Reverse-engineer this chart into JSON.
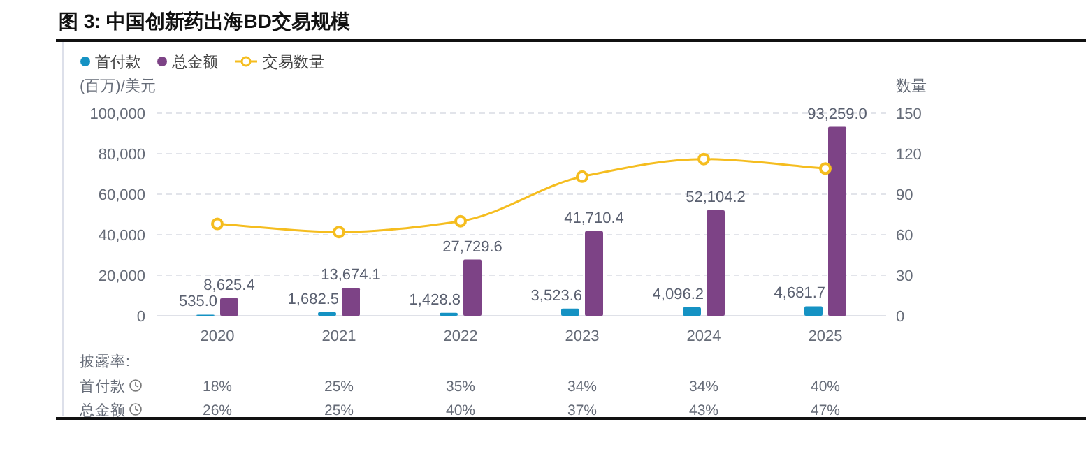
{
  "chart_data": {
    "type": "bar",
    "title": "图 3: 中国创新药出海BD交易规模",
    "categories": [
      "2020",
      "2021",
      "2022",
      "2023",
      "2024",
      "2025"
    ],
    "series": [
      {
        "name": "首付款",
        "color": "#1592c3",
        "values": [
          535.0,
          1682.5,
          1428.8,
          3523.6,
          4096.2,
          4681.7
        ],
        "value_labels": [
          "535.0",
          "1,682.5",
          "1,428.8",
          "3,523.6",
          "4,096.2",
          "4,681.7"
        ]
      },
      {
        "name": "总金额",
        "color": "#7d4386",
        "values": [
          8625.4,
          13674.1,
          27729.6,
          41710.4,
          52104.2,
          93259.0
        ],
        "value_labels": [
          "8,625.4",
          "13,674.1",
          "27,729.6",
          "41,710.4",
          "52,104.2",
          "93,259.0"
        ]
      },
      {
        "name": "交易数量",
        "type": "line",
        "axis": "y2",
        "color": "#f5bd1f",
        "marker": "circle",
        "values": [
          68,
          62,
          70,
          103,
          116,
          109
        ]
      }
    ],
    "ylabel": "(百万)/美元",
    "y2label": "数量",
    "ylim": [
      0,
      100000
    ],
    "yticks": [
      0,
      {
        "value": 20000,
        "label": "20,000"
      },
      {
        "value": 40000,
        "label": "40,000"
      },
      {
        "value": 60000,
        "label": "60,000"
      },
      {
        "value": 80000,
        "label": "80,000"
      },
      {
        "value": 100000,
        "label": "100,000"
      }
    ],
    "y2lim": [
      0,
      150
    ],
    "y2ticks": [
      0,
      30,
      60,
      90,
      120,
      150
    ],
    "grid": "y",
    "legend": "top left",
    "annotations": [
      "披露率:",
      "首付款",
      "18%",
      "25%",
      "35%",
      "34%",
      "34%",
      "40%",
      "总金额",
      "26%",
      "25%",
      "40%",
      "37%",
      "43%",
      "47%"
    ]
  }
}
